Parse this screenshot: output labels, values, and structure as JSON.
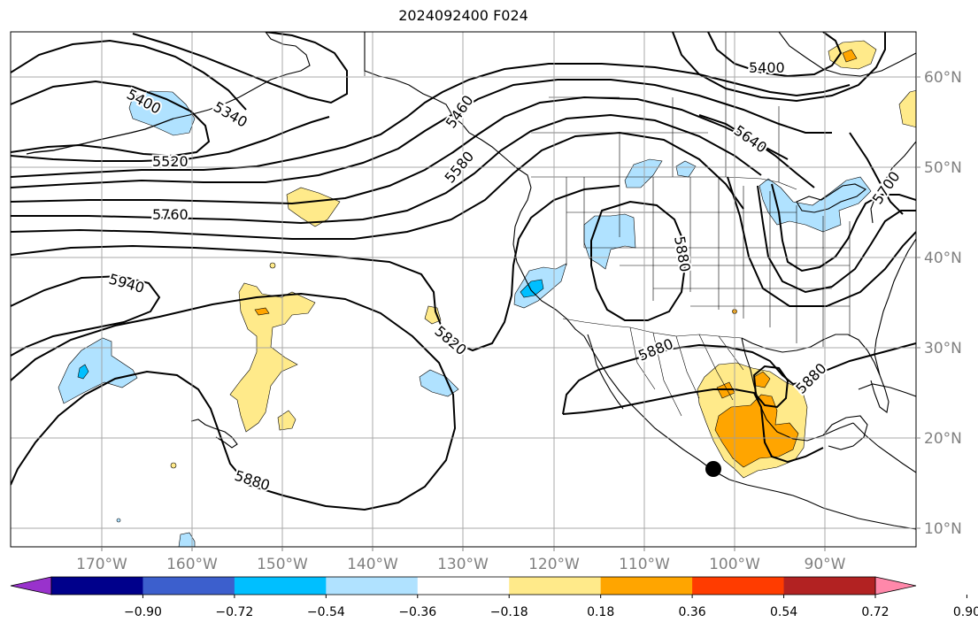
{
  "title": "2024092400 F024",
  "lat_ticks": [
    "60°N",
    "50°N",
    "40°N",
    "30°N",
    "20°N",
    "10°N"
  ],
  "lon_ticks": [
    "170°W",
    "160°W",
    "150°W",
    "140°W",
    "130°W",
    "120°W",
    "110°W",
    "100°W",
    "90°W"
  ],
  "contour_labels": [
    "5400",
    "5340",
    "5520",
    "5760",
    "5940",
    "5820",
    "5880",
    "5880",
    "5580",
    "5460",
    "5400",
    "5640",
    "5700",
    "5880",
    "5880"
  ],
  "colorbar": {
    "tick_labels": [
      "−0.90",
      "−0.72",
      "−0.54",
      "−0.36",
      "−0.18",
      "0.18",
      "0.36",
      "0.54",
      "0.72",
      "0.90"
    ],
    "colors": [
      "#9932cc",
      "#00008b",
      "#3c5fcd",
      "#00bfff",
      "#b0e2ff",
      "#ffffff",
      "#ffea8a",
      "#ffa500",
      "#ff3c00",
      "#b22222",
      "#ff88aa"
    ]
  },
  "palette": {
    "light_blue": "#b0e2ff",
    "deep_sky_blue": "#00bfff",
    "light_yellow": "#ffea8a",
    "orange": "#ffa500",
    "orange_red": "#ff3c00"
  },
  "marker": "storm-center-dot"
}
